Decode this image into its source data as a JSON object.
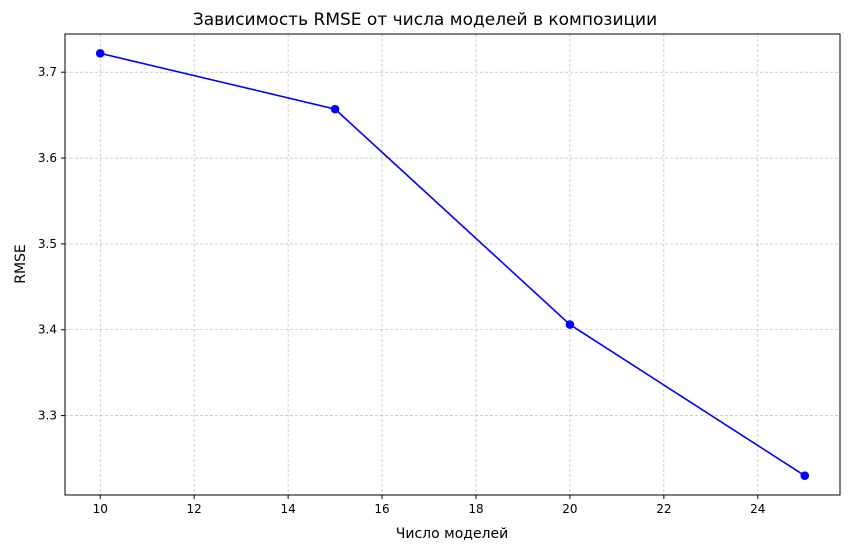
{
  "chart_data": {
    "type": "line",
    "title": "Зависимость RMSE от числа моделей в композиции",
    "xlabel": "Число моделей",
    "ylabel": "RMSE",
    "x": [
      10,
      15,
      20,
      25
    ],
    "series": [
      {
        "values": [
          3.722,
          3.657,
          3.406,
          3.23
        ],
        "color": "#0000ff",
        "marker": "circle"
      }
    ],
    "xlim": [
      9.25,
      25.75
    ],
    "ylim": [
      3.2075,
      3.7445
    ],
    "xticks": [
      10,
      12,
      14,
      16,
      18,
      20,
      22,
      24
    ],
    "yticks": [
      3.3,
      3.4,
      3.5,
      3.6,
      3.7
    ],
    "grid": true,
    "grid_style": "dashed"
  }
}
